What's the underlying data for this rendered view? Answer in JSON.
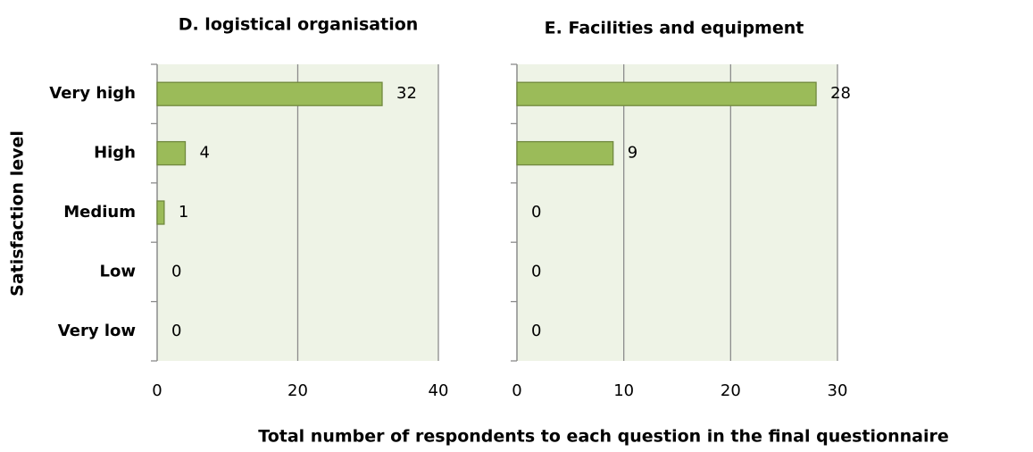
{
  "chart_data": [
    {
      "type": "bar",
      "orientation": "horizontal",
      "title": "D. logistical organisation",
      "ylabel": "Satisfaction level",
      "categories": [
        "Very high",
        "High",
        "Medium",
        "Low",
        "Very low"
      ],
      "values": [
        32,
        4,
        1,
        0,
        0
      ],
      "color": "#9bbb59",
      "xlim": [
        0,
        40
      ],
      "xticks": [
        0,
        20,
        40
      ],
      "grid": true
    },
    {
      "type": "bar",
      "orientation": "horizontal",
      "title": "E. Facilities and equipment",
      "xlabel": "Total number of respondents to each question in the final questionnaire",
      "values": [
        28,
        9,
        0,
        0,
        0
      ],
      "color": "#9bbb59",
      "xlim": [
        0,
        30
      ],
      "xticks": [
        0,
        10,
        20,
        30
      ],
      "grid": true
    }
  ]
}
